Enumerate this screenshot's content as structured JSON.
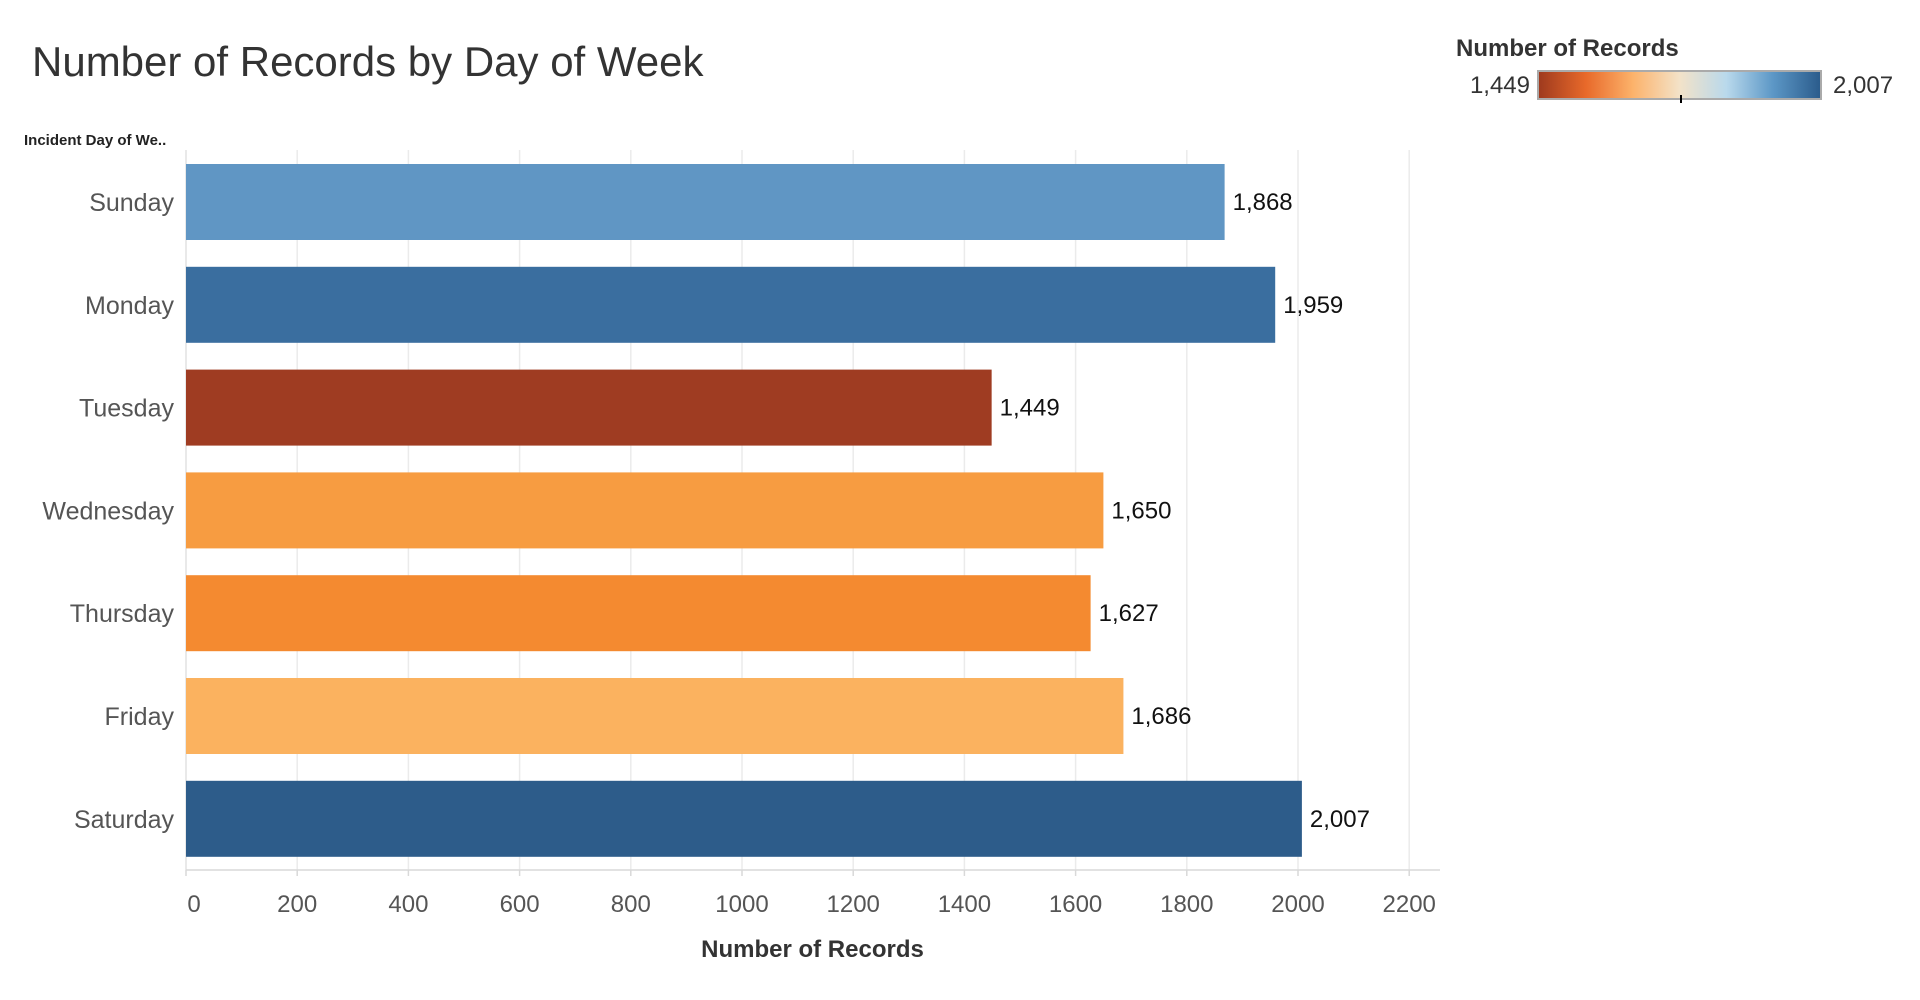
{
  "chart_data": {
    "type": "bar",
    "orientation": "horizontal",
    "title": "Number of Records by Day of Week",
    "row_header": "Incident Day of We..",
    "xlabel": "Number of Records",
    "xlim": [
      0,
      2260
    ],
    "x_ticks": [
      0,
      200,
      400,
      600,
      800,
      1000,
      1200,
      1400,
      1600,
      1800,
      2000,
      2200
    ],
    "grid": true,
    "categories": [
      "Sunday",
      "Monday",
      "Tuesday",
      "Wednesday",
      "Thursday",
      "Friday",
      "Saturday"
    ],
    "values": [
      1868,
      1959,
      1449,
      1650,
      1627,
      1686,
      2007
    ],
    "data_labels": [
      "1,868",
      "1,959",
      "1,449",
      "1,650",
      "1,627",
      "1,686",
      "2,007"
    ],
    "colors": [
      "#6096c4",
      "#3a6e9f",
      "#9f3c22",
      "#f79c41",
      "#f48a30",
      "#fbb25f",
      "#2d5c8a"
    ],
    "legend": {
      "title": "Number of Records",
      "min_label": "1,449",
      "max_label": "2,007",
      "placement": "top-right",
      "ramp_colors": [
        "#9f3a1e",
        "#e8692a",
        "#fcb26a",
        "#f3e2c8",
        "#b9d9ec",
        "#5c97c6",
        "#2b5c8c"
      ]
    }
  }
}
